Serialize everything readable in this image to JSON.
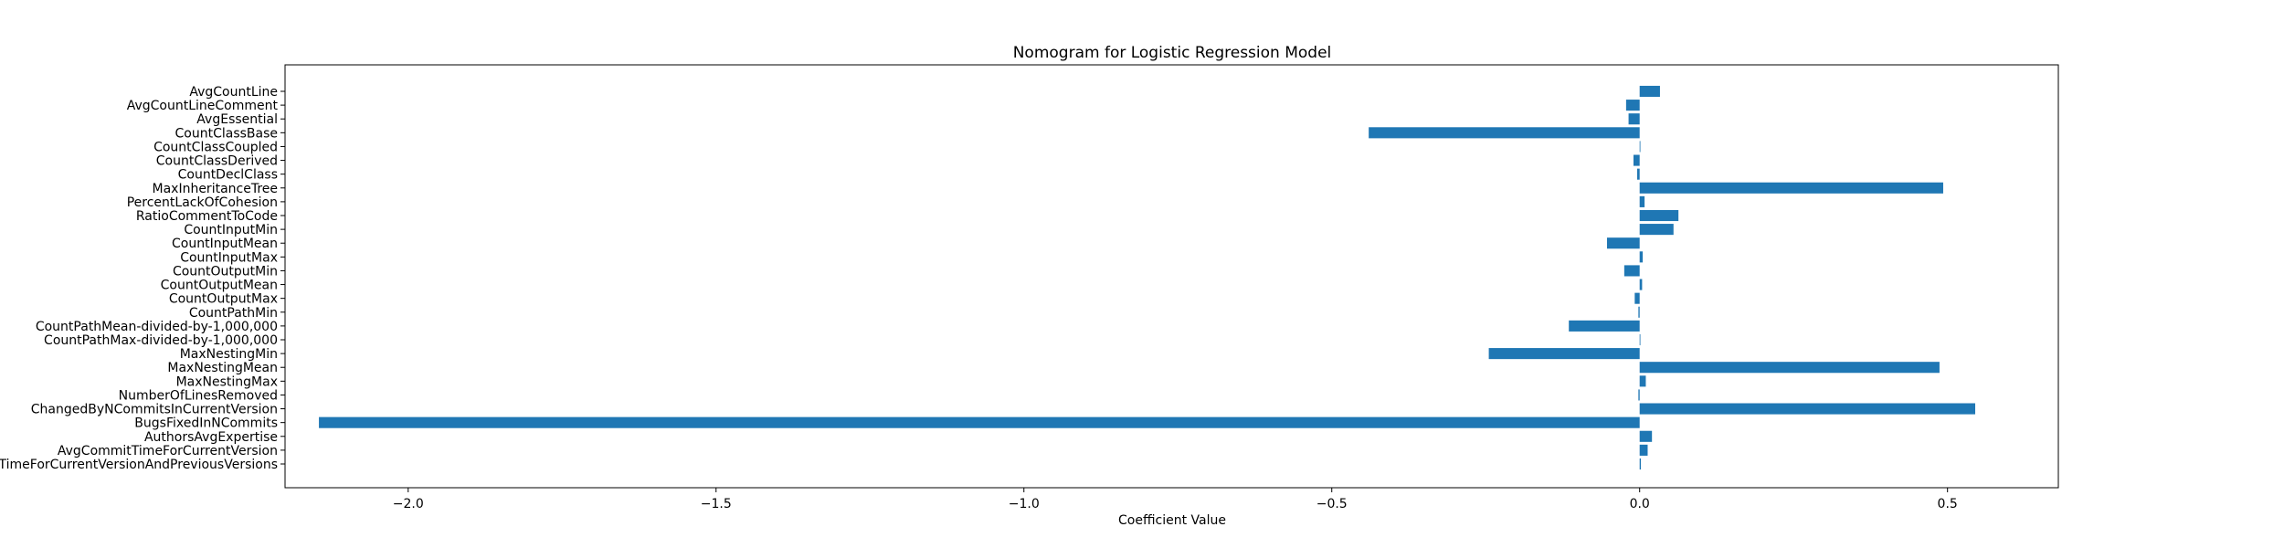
{
  "chart_data": {
    "type": "bar",
    "orientation": "horizontal",
    "title": "Nomogram for Logistic Regression Model",
    "xlabel": "Coefficient Value",
    "ylabel": "",
    "xlim": [
      -2.2,
      0.68
    ],
    "xticks": [
      -2.0,
      -1.5,
      -1.0,
      -0.5,
      0.0,
      0.5
    ],
    "xtick_labels": [
      "−2.0",
      "−1.5",
      "−1.0",
      "−0.5",
      "0.0",
      "0.5"
    ],
    "grid": false,
    "bar_color": "#1f77b4",
    "categories": [
      "AvgCountLine",
      "AvgCountLineComment",
      "AvgEssential",
      "CountClassBase",
      "CountClassCoupled",
      "CountClassDerived",
      "CountDeclClass",
      "MaxInheritanceTree",
      "PercentLackOfCohesion",
      "RatioCommentToCode",
      "CountInputMin",
      "CountInputMean",
      "CountInputMax",
      "CountOutputMin",
      "CountOutputMean",
      "CountOutputMax",
      "CountPathMin",
      "CountPathMean-divided-by-1,000,000",
      "CountPathMax-divided-by-1,000,000",
      "MaxNestingMin",
      "MaxNestingMean",
      "MaxNestingMax",
      "NumberOfLinesRemoved",
      "ChangedByNCommitsInCurrentVersion",
      "BugsFixedInNCommits",
      "AuthorsAvgExpertise",
      "AvgCommitTimeForCurrentVersion",
      "TimeForCurrentVersionAndPreviousVersions"
    ],
    "values": [
      0.033,
      -0.022,
      -0.018,
      -0.44,
      0.0,
      -0.01,
      -0.004,
      0.493,
      0.008,
      0.063,
      0.055,
      -0.053,
      0.005,
      -0.025,
      0.004,
      -0.008,
      -0.002,
      -0.115,
      0.0,
      -0.245,
      0.487,
      0.01,
      -0.002,
      0.545,
      -2.145,
      0.02,
      0.013,
      0.002
    ]
  }
}
